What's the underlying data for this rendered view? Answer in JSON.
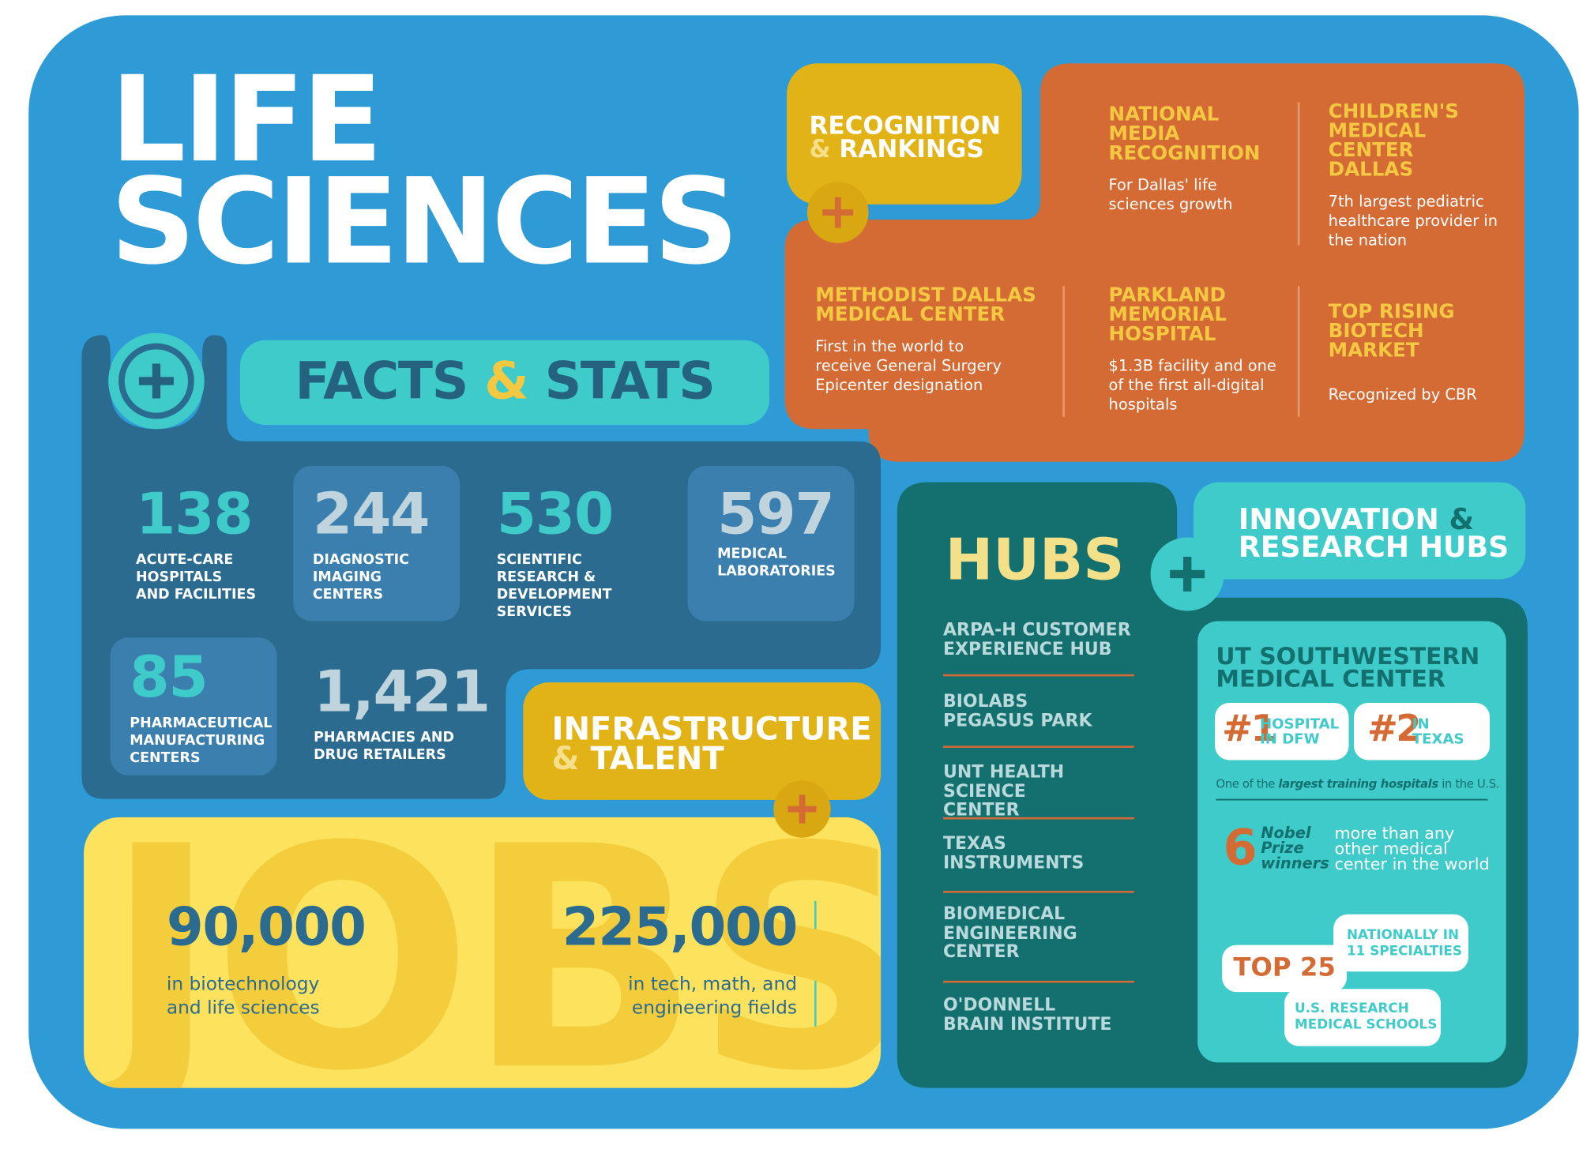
{
  "title": "LIFE SCIENCES",
  "recognition": {
    "heading": [
      "RECOGNITION",
      "&",
      "RANKINGS"
    ],
    "items": [
      {
        "title": "NATIONAL MEDIA RECOGNITION",
        "text": "For Dallas' life sciences growth"
      },
      {
        "title": "CHILDREN'S MEDICAL CENTER DALLAS",
        "text": "7th largest pediatric healthcare provider in the nation"
      },
      {
        "title": "METHODIST DALLAS MEDICAL CENTER",
        "text": "First in the world to receive General Surgery Epicenter designation"
      },
      {
        "title": "PARKLAND MEMORIAL HOSPITAL",
        "text": "$1.3B facility and one of the first all-digital hospitals"
      },
      {
        "title": "TOP RISING BIOTECH MARKET",
        "text": "Recognized by CBR"
      }
    ]
  },
  "facts": {
    "heading": [
      "FACTS",
      "&",
      "STATS"
    ],
    "stats": [
      {
        "value": "138",
        "label": "ACUTE-CARE HOSPITALS AND FACILITIES"
      },
      {
        "value": "244",
        "label": "DIAGNOSTIC IMAGING CENTERS"
      },
      {
        "value": "530",
        "label": "SCIENTIFIC RESEARCH & DEVELOPMENT SERVICES"
      },
      {
        "value": "597",
        "label": "MEDICAL LABORATORIES"
      },
      {
        "value": "85",
        "label": "PHARMACEUTICAL MANUFACTURING CENTERS"
      },
      {
        "value": "1,421",
        "label": "PHARMACIES AND DRUG RETAILERS"
      }
    ]
  },
  "infrastructure": {
    "heading": [
      "INFRASTRUCTURE",
      "&",
      "TALENT"
    ],
    "background": "JOBS",
    "jobs": [
      {
        "value": "90,000",
        "label": "in biotechnology and life sciences"
      },
      {
        "value": "225,000",
        "label": "in tech, math, and engineering fields"
      }
    ]
  },
  "hubs": {
    "heading": "HUBS",
    "items": [
      "ARPA-H CUSTOMER EXPERIENCE HUB",
      "BIOLABS PEGASUS PARK",
      "UNT HEALTH SCIENCE CENTER",
      "TEXAS INSTRUMENTS",
      "BIOMEDICAL ENGINEERING CENTER",
      "O'DONNELL BRAIN INSTITUTE"
    ]
  },
  "innovation": {
    "heading": [
      "INNOVATION",
      "&",
      "RESEARCH HUBS"
    ]
  },
  "utsw": {
    "title": "UT SOUTHWESTERN MEDICAL CENTER",
    "badges": [
      {
        "rank": "#1",
        "text": "HOSPITAL IN DFW"
      },
      {
        "rank": "#2",
        "text": "IN TEXAS"
      }
    ],
    "training": [
      "One of the",
      "largest training hospitals",
      "in the U.S."
    ],
    "nobel": {
      "count": "6",
      "label": "Nobel Prize winners",
      "text": "more than any other medical center in the world"
    },
    "top25": {
      "label": "TOP 25",
      "nationally": "NATIONALLY IN 11 SPECIALTIES",
      "research": "U.S. RESEARCH MEDICAL SCHOOLS"
    }
  }
}
